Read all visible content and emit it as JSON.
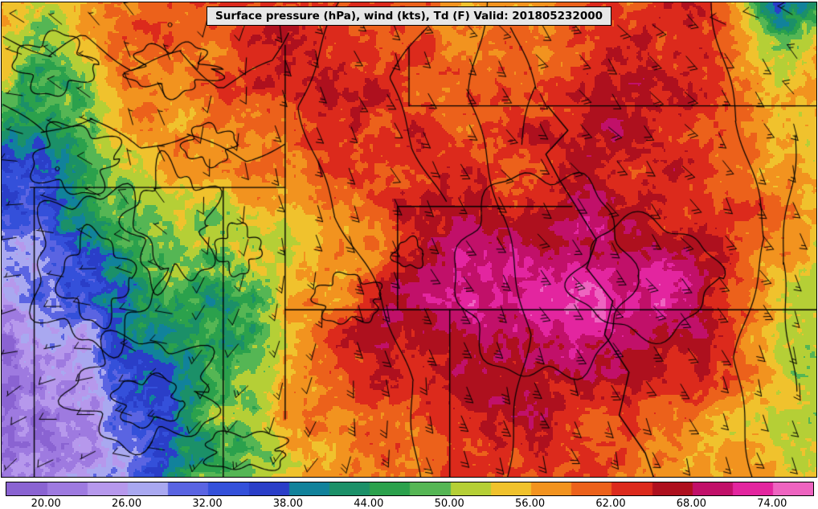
{
  "title": "Surface pressure (hPa), wind (kts), Td (F) Valid: 201805232000",
  "colorbar": {
    "tick_labels": [
      "20.00",
      "26.00",
      "32.00",
      "38.00",
      "44.00",
      "50.00",
      "56.00",
      "62.00",
      "68.00",
      "74.00"
    ],
    "tick_values": [
      20,
      26,
      32,
      38,
      44,
      50,
      56,
      62,
      68,
      74
    ]
  },
  "chart_data": {
    "type": "heatmap",
    "title": "Surface pressure (hPa), wind (kts), Td (F) Valid: 201805232000",
    "valid_time": "201805232000",
    "variable": "dewpoint_F",
    "units": {
      "pressure": "hPa",
      "wind": "kts",
      "dewpoint": "F"
    },
    "seed": 7,
    "colorbar_ticks": [
      20,
      26,
      32,
      38,
      44,
      50,
      56,
      62,
      68,
      74
    ],
    "colormap": {
      "min": 17,
      "max": 77,
      "step": 3,
      "colors": [
        "#8a63d2",
        "#9e7ae0",
        "#b698ec",
        "#a9a8f0",
        "#5a64e2",
        "#3450da",
        "#2a3ec8",
        "#11829b",
        "#1b9068",
        "#2ba14c",
        "#55b654",
        "#b5cf36",
        "#f0c22d",
        "#f2931f",
        "#ec611b",
        "#dc2a1c",
        "#ae101e",
        "#c11069",
        "#e3259f",
        "#ee64c0"
      ]
    },
    "dewpoint_grid": {
      "cols": 24,
      "rows": 15,
      "values": [
        [
          56,
          50,
          52,
          58,
          60,
          61,
          62,
          62,
          63,
          62,
          62,
          60,
          59,
          58,
          57,
          58,
          60,
          62,
          63,
          64,
          62,
          52,
          34,
          45
        ],
        [
          55,
          48,
          55,
          60,
          62,
          60,
          62,
          63,
          64,
          63,
          62,
          61,
          60,
          59,
          58,
          59,
          61,
          63,
          64,
          64,
          63,
          56,
          46,
          52
        ],
        [
          52,
          45,
          50,
          58,
          61,
          59,
          60,
          62,
          63,
          63,
          62,
          62,
          61,
          60,
          59,
          60,
          62,
          64,
          64,
          65,
          64,
          58,
          52,
          58
        ],
        [
          48,
          44,
          47,
          55,
          60,
          58,
          59,
          61,
          62,
          64,
          63,
          63,
          62,
          61,
          60,
          61,
          63,
          65,
          65,
          65,
          64,
          60,
          55,
          57
        ],
        [
          42,
          40,
          45,
          52,
          58,
          60,
          58,
          60,
          62,
          64,
          64,
          63,
          62,
          62,
          61,
          62,
          64,
          65,
          65,
          64,
          63,
          60,
          57,
          55
        ],
        [
          38,
          36,
          42,
          50,
          55,
          58,
          56,
          58,
          60,
          62,
          64,
          64,
          63,
          63,
          62,
          63,
          65,
          66,
          65,
          64,
          62,
          60,
          58,
          54
        ],
        [
          34,
          33,
          40,
          48,
          52,
          55,
          52,
          55,
          56,
          58,
          58,
          63,
          64,
          65,
          66,
          66,
          66,
          66,
          65,
          64,
          62,
          60,
          58,
          55
        ],
        [
          30,
          32,
          38,
          45,
          50,
          52,
          48,
          50,
          52,
          55,
          58,
          62,
          66,
          68,
          69,
          69,
          69,
          69,
          68,
          66,
          63,
          61,
          58,
          54
        ],
        [
          27,
          29,
          34,
          40,
          46,
          50,
          46,
          48,
          52,
          56,
          58,
          65,
          67,
          69,
          70,
          71,
          72,
          72,
          72,
          70,
          66,
          62,
          57,
          53
        ],
        [
          24,
          26,
          30,
          36,
          42,
          48,
          44,
          46,
          54,
          58,
          60,
          66,
          68,
          70,
          71,
          72,
          73,
          73,
          72,
          70,
          66,
          62,
          56,
          52
        ],
        [
          22,
          24,
          27,
          32,
          38,
          44,
          46,
          48,
          55,
          60,
          63,
          65,
          67,
          68,
          69,
          70,
          70,
          70,
          69,
          67,
          64,
          61,
          55,
          52
        ],
        [
          21,
          22,
          25,
          29,
          35,
          42,
          48,
          52,
          56,
          60,
          62,
          64,
          65,
          66,
          67,
          68,
          68,
          67,
          66,
          64,
          62,
          59,
          54,
          52
        ],
        [
          20,
          21,
          24,
          27,
          33,
          40,
          50,
          48,
          57,
          59,
          61,
          62,
          64,
          65,
          66,
          65,
          64,
          63,
          62,
          61,
          59,
          56,
          53,
          52
        ],
        [
          20,
          21,
          23,
          26,
          32,
          42,
          46,
          48,
          56,
          58,
          60,
          61,
          62,
          63,
          64,
          63,
          62,
          62,
          61,
          60,
          58,
          56,
          53,
          52
        ],
        [
          21,
          22,
          24,
          27,
          33,
          44,
          50,
          52,
          55,
          57,
          59,
          60,
          61,
          62,
          63,
          62,
          61,
          61,
          60,
          59,
          58,
          56,
          54,
          53
        ]
      ]
    },
    "wind_grid": {
      "cols": 12,
      "rows": 8,
      "dir": [
        [
          300,
          310,
          320,
          200,
          170,
          160,
          150,
          140,
          140,
          130,
          300,
          310
        ],
        [
          290,
          300,
          330,
          190,
          170,
          160,
          150,
          145,
          140,
          135,
          150,
          320
        ],
        [
          280,
          300,
          340,
          180,
          165,
          155,
          150,
          145,
          140,
          140,
          150,
          160
        ],
        [
          270,
          290,
          320,
          190,
          170,
          160,
          150,
          145,
          140,
          140,
          150,
          160
        ],
        [
          260,
          280,
          300,
          200,
          180,
          165,
          155,
          150,
          145,
          145,
          150,
          160
        ],
        [
          250,
          270,
          290,
          210,
          190,
          170,
          160,
          155,
          150,
          150,
          155,
          160
        ],
        [
          240,
          260,
          280,
          220,
          200,
          180,
          165,
          160,
          155,
          155,
          160,
          165
        ],
        [
          230,
          250,
          270,
          230,
          210,
          190,
          170,
          165,
          160,
          160,
          165,
          170
        ]
      ],
      "spd": [
        [
          8,
          6,
          5,
          10,
          15,
          15,
          15,
          15,
          20,
          20,
          10,
          15
        ],
        [
          6,
          5,
          5,
          10,
          15,
          15,
          15,
          20,
          20,
          20,
          15,
          15
        ],
        [
          5,
          5,
          8,
          10,
          15,
          15,
          20,
          20,
          20,
          20,
          15,
          15
        ],
        [
          5,
          6,
          8,
          10,
          15,
          20,
          20,
          20,
          20,
          20,
          20,
          15
        ],
        [
          6,
          6,
          8,
          12,
          15,
          20,
          20,
          25,
          20,
          20,
          20,
          15
        ],
        [
          5,
          6,
          10,
          12,
          15,
          20,
          25,
          25,
          25,
          20,
          20,
          15
        ],
        [
          5,
          8,
          10,
          12,
          15,
          20,
          25,
          25,
          20,
          20,
          15,
          15
        ],
        [
          5,
          8,
          10,
          15,
          15,
          20,
          20,
          20,
          20,
          15,
          15,
          15
        ]
      ]
    },
    "state_borders": [
      [
        [
          0.035,
          0.39
        ],
        [
          0.348,
          0.39
        ]
      ],
      [
        [
          0.348,
          0.09
        ],
        [
          0.348,
          0.878
        ]
      ],
      [
        [
          0.04,
          0.39
        ],
        [
          0.04,
          1.0
        ]
      ],
      [
        [
          0.272,
          0.39
        ],
        [
          0.272,
          1.0
        ]
      ],
      [
        [
          0.348,
          0.648
        ],
        [
          1.0,
          0.648
        ]
      ],
      [
        [
          0.55,
          0.648
        ],
        [
          0.55,
          1.0
        ]
      ],
      [
        [
          0.486,
          0.43
        ],
        [
          0.486,
          0.648
        ]
      ],
      [
        [
          0.486,
          0.43
        ],
        [
          0.7,
          0.43
        ]
      ],
      [
        [
          0.5,
          0.095
        ],
        [
          0.5,
          0.218
        ]
      ],
      [
        [
          0.5,
          0.218
        ],
        [
          1.0,
          0.218
        ]
      ],
      [
        [
          0.67,
          0.218
        ],
        [
          0.695,
          0.27
        ],
        [
          0.668,
          0.32
        ],
        [
          0.685,
          0.375
        ],
        [
          0.705,
          0.43
        ],
        [
          0.73,
          0.5
        ],
        [
          0.718,
          0.56
        ],
        [
          0.75,
          0.63
        ],
        [
          0.74,
          0.7
        ],
        [
          0.77,
          0.78
        ],
        [
          0.758,
          0.87
        ],
        [
          0.79,
          0.95
        ],
        [
          0.8,
          1.0
        ]
      ]
    ],
    "pressure_contours": {
      "blobs": [
        {
          "c": [
            0.115,
            0.56
          ],
          "r": [
            0.075,
            0.16
          ],
          "amp": 0.25,
          "lobes": 5,
          "seed": 1
        },
        {
          "c": [
            0.115,
            0.58
          ],
          "r": [
            0.04,
            0.09
          ],
          "amp": 0.3,
          "lobes": 4,
          "seed": 2
        },
        {
          "c": [
            0.09,
            0.33
          ],
          "r": [
            0.05,
            0.07
          ],
          "amp": 0.3,
          "lobes": 4,
          "seed": 3
        },
        {
          "c": [
            0.21,
            0.47
          ],
          "r": [
            0.05,
            0.12
          ],
          "amp": 0.35,
          "lobes": 5,
          "seed": 4
        },
        {
          "c": [
            0.175,
            0.82
          ],
          "r": [
            0.085,
            0.11
          ],
          "amp": 0.3,
          "lobes": 5,
          "seed": 5
        },
        {
          "c": [
            0.18,
            0.84
          ],
          "r": [
            0.04,
            0.05
          ],
          "amp": 0.3,
          "lobes": 4,
          "seed": 6
        },
        {
          "c": [
            0.065,
            0.13
          ],
          "r": [
            0.045,
            0.06
          ],
          "amp": 0.3,
          "lobes": 4,
          "seed": 7
        },
        {
          "c": [
            0.29,
            0.52
          ],
          "r": [
            0.025,
            0.05
          ],
          "amp": 0.3,
          "lobes": 4,
          "seed": 8
        },
        {
          "c": [
            0.255,
            0.3
          ],
          "r": [
            0.03,
            0.04
          ],
          "amp": 0.3,
          "lobes": 4,
          "seed": 9
        },
        {
          "c": [
            0.425,
            0.625
          ],
          "r": [
            0.04,
            0.05
          ],
          "amp": 0.25,
          "lobes": 5,
          "seed": 10
        },
        {
          "c": [
            0.3,
            0.945
          ],
          "r": [
            0.05,
            0.04
          ],
          "amp": 0.3,
          "lobes": 4,
          "seed": 11
        },
        {
          "c": [
            0.5,
            0.53
          ],
          "r": [
            0.018,
            0.03
          ],
          "amp": 0.3,
          "lobes": 3,
          "seed": 12
        },
        {
          "c": [
            0.21,
            0.14
          ],
          "r": [
            0.05,
            0.05
          ],
          "amp": 0.35,
          "lobes": 5,
          "seed": 13
        },
        {
          "c": [
            0.665,
            0.575
          ],
          "r": [
            0.105,
            0.215
          ],
          "amp": 0.12,
          "lobes": 6,
          "seed": 14
        },
        {
          "c": [
            0.79,
            0.58
          ],
          "r": [
            0.085,
            0.12
          ],
          "amp": 0.18,
          "lobes": 4,
          "seed": 15
        }
      ],
      "lines": [
        [
          [
            0.415,
            0.0
          ],
          [
            0.37,
            0.22
          ],
          [
            0.41,
            0.45
          ],
          [
            0.46,
            0.62
          ],
          [
            0.5,
            0.8
          ],
          [
            0.515,
            1.0
          ]
        ],
        [
          [
            0.6,
            0.0
          ],
          [
            0.578,
            0.2
          ],
          [
            0.61,
            0.45
          ],
          [
            0.645,
            0.7
          ],
          [
            0.625,
            1.0
          ]
        ],
        [
          [
            0.875,
            0.0
          ],
          [
            0.9,
            0.25
          ],
          [
            0.935,
            0.5
          ],
          [
            0.905,
            0.75
          ],
          [
            0.925,
            1.0
          ]
        ],
        [
          [
            0.975,
            0.28
          ],
          [
            0.952,
            0.55
          ],
          [
            0.975,
            0.82
          ]
        ],
        [
          [
            0.0,
            0.08
          ],
          [
            0.06,
            0.12
          ],
          [
            0.1,
            0.08
          ],
          [
            0.16,
            0.14
          ],
          [
            0.22,
            0.1
          ],
          [
            0.27,
            0.17
          ],
          [
            0.33,
            0.12
          ],
          [
            0.348,
            0.06
          ]
        ],
        [
          [
            0.0,
            0.22
          ],
          [
            0.05,
            0.28
          ],
          [
            0.11,
            0.24
          ],
          [
            0.17,
            0.3
          ],
          [
            0.23,
            0.27
          ],
          [
            0.3,
            0.33
          ],
          [
            0.348,
            0.3
          ]
        ],
        [
          [
            0.52,
            0.05
          ],
          [
            0.48,
            0.16
          ],
          [
            0.51,
            0.3
          ],
          [
            0.545,
            0.42
          ]
        ],
        [
          [
            0.63,
            0.05
          ],
          [
            0.66,
            0.18
          ],
          [
            0.64,
            0.3
          ]
        ]
      ]
    }
  }
}
